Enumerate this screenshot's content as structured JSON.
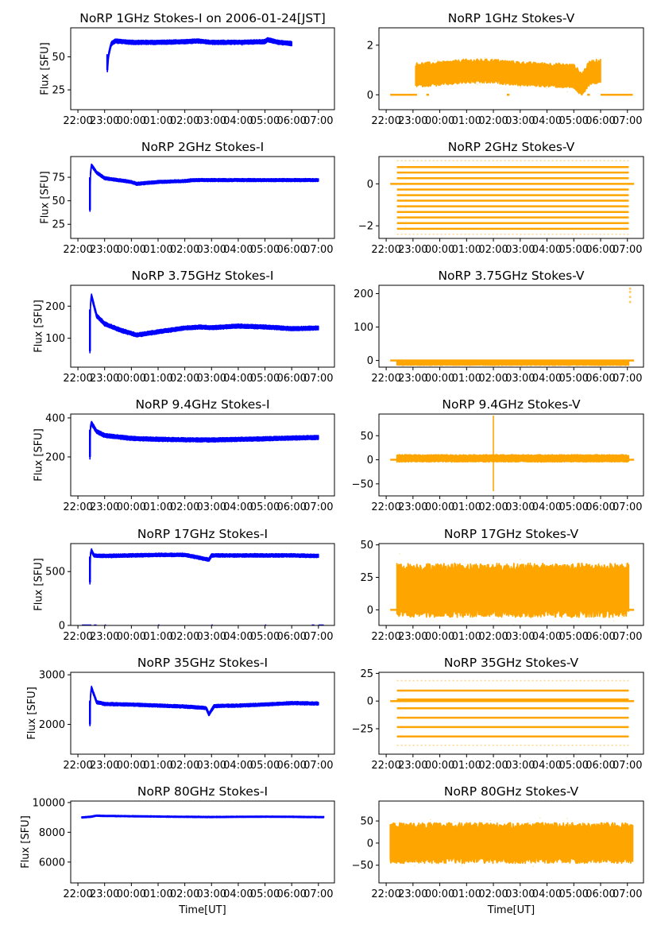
{
  "figure": {
    "date_label": "2006-01-24[JST]",
    "xlabel": "Time[UT]",
    "ylabel": "Flux [SFU]",
    "colors": {
      "stokes_i": "#0000ff",
      "stokes_v": "#ffa500",
      "axes": "#000000"
    }
  },
  "chart_data": [
    {
      "type": "scatter",
      "title": "NoRP 1GHz Stokes-I on 2006-01-24[JST]",
      "xlabel": "",
      "ylabel": "Flux [SFU]",
      "series_color": "#0000ff",
      "x_unit": "hours (UT, continuous from 22:00 of previous day)",
      "xlim": [
        21.73,
        31.6
      ],
      "ylim": [
        10,
        72
      ],
      "xticks": [
        22,
        23,
        24,
        25,
        26,
        27,
        28,
        29,
        30,
        31
      ],
      "xtick_labels": [
        "22:00",
        "23:00",
        "00:00",
        "01:00",
        "02:00",
        "03:00",
        "04:00",
        "05:00",
        "06:00",
        "07:00"
      ],
      "yticks": [
        25,
        50
      ],
      "ytick_labels": [
        "25",
        "50"
      ],
      "trace": {
        "x": [
          23.1,
          23.15,
          23.25,
          23.4,
          24,
          25,
          26,
          26.5,
          27,
          28,
          29,
          29.1,
          29.5,
          30
        ],
        "y": [
          40,
          52,
          60,
          62,
          61,
          61,
          61.5,
          62,
          61,
          61,
          61.5,
          63,
          61,
          60
        ],
        "spread": 1.5
      }
    },
    {
      "type": "scatter",
      "title": "NoRP 1GHz Stokes-V",
      "xlabel": "",
      "ylabel": "",
      "series_color": "#ffa500",
      "xlim": [
        21.73,
        31.6
      ],
      "ylim": [
        -0.6,
        2.7
      ],
      "xticks": [
        22,
        23,
        24,
        25,
        26,
        27,
        28,
        29,
        30,
        31
      ],
      "xtick_labels": [
        "22:00",
        "23:00",
        "00:00",
        "01:00",
        "02:00",
        "03:00",
        "04:00",
        "05:00",
        "06:00",
        "07:00"
      ],
      "yticks": [
        0,
        2
      ],
      "ytick_labels": [
        "0",
        "2"
      ],
      "trace": {
        "x": [
          23.1,
          24,
          25,
          26,
          27,
          28,
          29,
          29.3,
          29.6,
          30
        ],
        "y": [
          0.8,
          0.85,
          0.95,
          0.95,
          0.85,
          0.8,
          0.75,
          0.4,
          0.9,
          0.95
        ],
        "spread": 0.45
      },
      "zero_segments": [
        [
          22.15,
          23.15
        ],
        [
          23.5,
          23.6
        ],
        [
          26.5,
          26.6
        ],
        [
          29.5,
          29.6
        ],
        [
          30,
          31.2
        ]
      ]
    },
    {
      "type": "scatter",
      "title": "NoRP 2GHz Stokes-I",
      "xlabel": "",
      "ylabel": "Flux [SFU]",
      "series_color": "#0000ff",
      "xlim": [
        21.73,
        31.6
      ],
      "ylim": [
        10,
        97
      ],
      "xticks": [
        22,
        23,
        24,
        25,
        26,
        27,
        28,
        29,
        30,
        31
      ],
      "xtick_labels": [
        "22:00",
        "23:00",
        "00:00",
        "01:00",
        "02:00",
        "03:00",
        "04:00",
        "05:00",
        "06:00",
        "07:00"
      ],
      "yticks": [
        25,
        50,
        75
      ],
      "ytick_labels": [
        "25",
        "50",
        "75"
      ],
      "trace": {
        "x": [
          22.45,
          22.46,
          22.5,
          22.7,
          23,
          24,
          24.2,
          25,
          26,
          26.3,
          27,
          28,
          29,
          30,
          31
        ],
        "y": [
          40,
          75,
          88,
          80,
          74,
          70,
          68,
          70,
          71,
          72,
          72,
          72,
          72,
          72,
          72
        ],
        "spread": 1.5
      }
    },
    {
      "type": "scatter",
      "title": "NoRP 2GHz Stokes-V",
      "xlabel": "",
      "ylabel": "",
      "series_color": "#ffa500",
      "xlim": [
        21.73,
        31.6
      ],
      "ylim": [
        -2.6,
        1.3
      ],
      "xticks": [
        22,
        23,
        24,
        25,
        26,
        27,
        28,
        29,
        30,
        31
      ],
      "xtick_labels": [
        "22:00",
        "23:00",
        "00:00",
        "01:00",
        "02:00",
        "03:00",
        "04:00",
        "05:00",
        "06:00",
        "07:00"
      ],
      "yticks": [
        -2,
        0
      ],
      "ytick_labels": [
        "−2",
        "0"
      ],
      "quantized_levels": [
        1.1,
        0.8,
        0.54,
        0.27,
        -0.27,
        -0.54,
        -0.8,
        -1.07,
        -1.34,
        -1.6,
        -1.87,
        -2.14,
        -2.4
      ],
      "level_range": [
        22.4,
        31.05
      ],
      "zero_segments": [
        [
          22.15,
          31.25
        ]
      ]
    },
    {
      "type": "scatter",
      "title": "NoRP 3.75GHz Stokes-I",
      "xlabel": "",
      "ylabel": "Flux [SFU]",
      "series_color": "#0000ff",
      "xlim": [
        21.73,
        31.6
      ],
      "ylim": [
        10,
        265
      ],
      "xticks": [
        22,
        23,
        24,
        25,
        26,
        27,
        28,
        29,
        30,
        31
      ],
      "xtick_labels": [
        "22:00",
        "23:00",
        "00:00",
        "01:00",
        "02:00",
        "03:00",
        "04:00",
        "05:00",
        "06:00",
        "07:00"
      ],
      "yticks": [
        100,
        200
      ],
      "ytick_labels": [
        "100",
        "200"
      ],
      "trace": {
        "x": [
          22.45,
          22.46,
          22.5,
          22.7,
          23,
          23.6,
          24.2,
          25,
          26,
          26.6,
          27,
          28,
          29,
          30,
          31
        ],
        "y": [
          60,
          190,
          235,
          170,
          145,
          125,
          110,
          120,
          132,
          135,
          133,
          138,
          135,
          130,
          132
        ],
        "spread": 6
      }
    },
    {
      "type": "scatter",
      "title": "NoRP 3.75GHz Stokes-V",
      "xlabel": "",
      "ylabel": "",
      "series_color": "#ffa500",
      "xlim": [
        21.73,
        31.6
      ],
      "ylim": [
        -20,
        225
      ],
      "xticks": [
        22,
        23,
        24,
        25,
        26,
        27,
        28,
        29,
        30,
        31
      ],
      "xtick_labels": [
        "22:00",
        "23:00",
        "00:00",
        "01:00",
        "02:00",
        "03:00",
        "04:00",
        "05:00",
        "06:00",
        "07:00"
      ],
      "yticks": [
        0,
        100,
        200
      ],
      "ytick_labels": [
        "0",
        "100",
        "200"
      ],
      "trace": {
        "x": [
          22.4,
          31.05
        ],
        "y": [
          -7,
          -7
        ],
        "spread": 7
      },
      "zero_segments": [
        [
          22.15,
          31.25
        ]
      ],
      "outliers": {
        "x": [
          31.1,
          31.1,
          31.1,
          31.1
        ],
        "y": [
          175,
          190,
          205,
          215
        ]
      }
    },
    {
      "type": "scatter",
      "title": "NoRP 9.4GHz Stokes-I",
      "xlabel": "",
      "ylabel": "Flux [SFU]",
      "series_color": "#0000ff",
      "xlim": [
        21.73,
        31.6
      ],
      "ylim": [
        0,
        420
      ],
      "xticks": [
        22,
        23,
        24,
        25,
        26,
        27,
        28,
        29,
        30,
        31
      ],
      "xtick_labels": [
        "22:00",
        "23:00",
        "00:00",
        "01:00",
        "02:00",
        "03:00",
        "04:00",
        "05:00",
        "06:00",
        "07:00"
      ],
      "yticks": [
        200,
        400
      ],
      "ytick_labels": [
        "200",
        "400"
      ],
      "trace": {
        "x": [
          22.45,
          22.46,
          22.5,
          22.7,
          23,
          24,
          25,
          26,
          27,
          28,
          29,
          30,
          31
        ],
        "y": [
          200,
          340,
          375,
          330,
          310,
          295,
          290,
          288,
          287,
          290,
          293,
          297,
          300
        ],
        "spread": 10
      }
    },
    {
      "type": "scatter",
      "title": "NoRP 9.4GHz Stokes-V",
      "xlabel": "",
      "ylabel": "",
      "series_color": "#ffa500",
      "xlim": [
        21.73,
        31.6
      ],
      "ylim": [
        -75,
        95
      ],
      "xticks": [
        22,
        23,
        24,
        25,
        26,
        27,
        28,
        29,
        30,
        31
      ],
      "xtick_labels": [
        "22:00",
        "23:00",
        "00:00",
        "01:00",
        "02:00",
        "03:00",
        "04:00",
        "05:00",
        "06:00",
        "07:00"
      ],
      "yticks": [
        -50,
        0,
        50
      ],
      "ytick_labels": [
        "−50",
        "0",
        "50"
      ],
      "trace": {
        "x": [
          22.4,
          31.05
        ],
        "y": [
          3,
          3
        ],
        "spread": 7
      },
      "zero_segments": [
        [
          22.15,
          31.25
        ]
      ],
      "spike": {
        "x": 26.0,
        "ymin": -65,
        "ymax": 92
      }
    },
    {
      "type": "scatter",
      "title": "NoRP 17GHz Stokes-I",
      "xlabel": "",
      "ylabel": "Flux [SFU]",
      "series_color": "#0000ff",
      "xlim": [
        21.73,
        31.6
      ],
      "ylim": [
        0,
        760
      ],
      "xticks": [
        22,
        23,
        24,
        25,
        26,
        27,
        28,
        29,
        30,
        31
      ],
      "xtick_labels": [
        "22:00",
        "23:00",
        "00:00",
        "01:00",
        "02:00",
        "03:00",
        "04:00",
        "05:00",
        "06:00",
        "07:00"
      ],
      "yticks": [
        0,
        500
      ],
      "ytick_labels": [
        "0",
        "500"
      ],
      "trace": {
        "x": [
          22.45,
          22.46,
          22.5,
          22.6,
          23,
          24,
          25,
          26,
          26.9,
          27,
          28,
          29,
          30,
          31
        ],
        "y": [
          400,
          640,
          700,
          650,
          645,
          650,
          655,
          655,
          610,
          650,
          650,
          650,
          650,
          645
        ],
        "spread": 15
      },
      "zero_segments": [
        [
          22.15,
          22.5
        ],
        [
          22.6,
          22.7
        ],
        [
          23,
          23.05
        ],
        [
          25,
          25.05
        ],
        [
          27,
          27.05
        ],
        [
          29,
          29.05
        ],
        [
          30.75,
          30.85
        ],
        [
          31,
          31.2
        ]
      ]
    },
    {
      "type": "scatter",
      "title": "NoRP 17GHz Stokes-V",
      "xlabel": "",
      "ylabel": "",
      "series_color": "#ffa500",
      "xlim": [
        21.73,
        31.6
      ],
      "ylim": [
        -12,
        51
      ],
      "xticks": [
        22,
        23,
        24,
        25,
        26,
        27,
        28,
        29,
        30,
        31
      ],
      "xtick_labels": [
        "22:00",
        "23:00",
        "00:00",
        "01:00",
        "02:00",
        "03:00",
        "04:00",
        "05:00",
        "06:00",
        "07:00"
      ],
      "yticks": [
        0,
        25,
        50
      ],
      "ytick_labels": [
        "0",
        "25",
        "50"
      ],
      "trace": {
        "x": [
          22.4,
          31.05
        ],
        "y": [
          15,
          15
        ],
        "spread": 19
      },
      "zero_segments": [
        [
          22.15,
          31.25
        ]
      ]
    },
    {
      "type": "scatter",
      "title": "NoRP 35GHz Stokes-I",
      "xlabel": "",
      "ylabel": "Flux [SFU]",
      "series_color": "#0000ff",
      "xlim": [
        21.73,
        31.6
      ],
      "ylim": [
        1400,
        3050
      ],
      "xticks": [
        22,
        23,
        24,
        25,
        26,
        27,
        28,
        29,
        30,
        31
      ],
      "xtick_labels": [
        "22:00",
        "23:00",
        "00:00",
        "01:00",
        "02:00",
        "03:00",
        "04:00",
        "05:00",
        "06:00",
        "07:00"
      ],
      "yticks": [
        2000,
        3000
      ],
      "ytick_labels": [
        "2000",
        "3000"
      ],
      "trace": {
        "x": [
          22.45,
          22.46,
          22.5,
          22.7,
          23,
          24,
          25,
          26,
          26.8,
          26.9,
          27.1,
          28,
          29,
          30,
          31
        ],
        "y": [
          2000,
          2480,
          2750,
          2450,
          2410,
          2400,
          2380,
          2360,
          2330,
          2200,
          2370,
          2380,
          2400,
          2430,
          2420
        ],
        "spread": 30
      }
    },
    {
      "type": "scatter",
      "title": "NoRP 35GHz Stokes-V",
      "xlabel": "",
      "ylabel": "",
      "series_color": "#ffa500",
      "xlim": [
        21.73,
        31.6
      ],
      "ylim": [
        -48,
        26
      ],
      "xticks": [
        22,
        23,
        24,
        25,
        26,
        27,
        28,
        29,
        30,
        31
      ],
      "xtick_labels": [
        "22:00",
        "23:00",
        "00:00",
        "01:00",
        "02:00",
        "03:00",
        "04:00",
        "05:00",
        "06:00",
        "07:00"
      ],
      "yticks": [
        -25,
        0,
        25
      ],
      "ytick_labels": [
        "−25",
        "0",
        "25"
      ],
      "quantized_levels": [
        18.5,
        9.5,
        1.5,
        -6.5,
        -15,
        -23.5,
        -32,
        -40
      ],
      "level_range": [
        22.4,
        31.05
      ],
      "zero_segments": [
        [
          22.15,
          31.25
        ]
      ]
    },
    {
      "type": "scatter",
      "title": "NoRP 80GHz Stokes-I",
      "xlabel": "Time[UT]",
      "ylabel": "Flux [SFU]",
      "series_color": "#0000ff",
      "xlim": [
        21.73,
        31.6
      ],
      "ylim": [
        4600,
        10100
      ],
      "xticks": [
        22,
        23,
        24,
        25,
        26,
        27,
        28,
        29,
        30,
        31
      ],
      "xtick_labels": [
        "22:00",
        "23:00",
        "00:00",
        "01:00",
        "02:00",
        "03:00",
        "04:00",
        "05:00",
        "06:00",
        "07:00"
      ],
      "yticks": [
        6000,
        8000,
        10000
      ],
      "ytick_labels": [
        "6000",
        "8000",
        "10000"
      ],
      "trace": {
        "x": [
          22.15,
          22.5,
          22.7,
          23,
          24,
          25,
          26,
          27,
          28,
          29,
          30,
          31.2
        ],
        "y": [
          9000,
          9050,
          9120,
          9100,
          9080,
          9060,
          9040,
          9030,
          9040,
          9050,
          9040,
          9020
        ],
        "spread": 40
      }
    },
    {
      "type": "scatter",
      "title": "NoRP 80GHz Stokes-V",
      "xlabel": "Time[UT]",
      "ylabel": "",
      "series_color": "#ffa500",
      "xlim": [
        21.73,
        31.6
      ],
      "ylim": [
        -90,
        95
      ],
      "xticks": [
        22,
        23,
        24,
        25,
        26,
        27,
        28,
        29,
        30,
        31
      ],
      "xtick_labels": [
        "22:00",
        "23:00",
        "00:00",
        "01:00",
        "02:00",
        "03:00",
        "04:00",
        "05:00",
        "06:00",
        "07:00"
      ],
      "yticks": [
        -50,
        0,
        50
      ],
      "ytick_labels": [
        "−50",
        "0",
        "50"
      ],
      "trace": {
        "x": [
          22.15,
          23,
          24,
          25,
          26,
          27,
          28,
          29,
          30,
          31.2
        ],
        "y": [
          0,
          0,
          0,
          0,
          0,
          0,
          0,
          0,
          0,
          0
        ],
        "spread": 42
      }
    }
  ]
}
